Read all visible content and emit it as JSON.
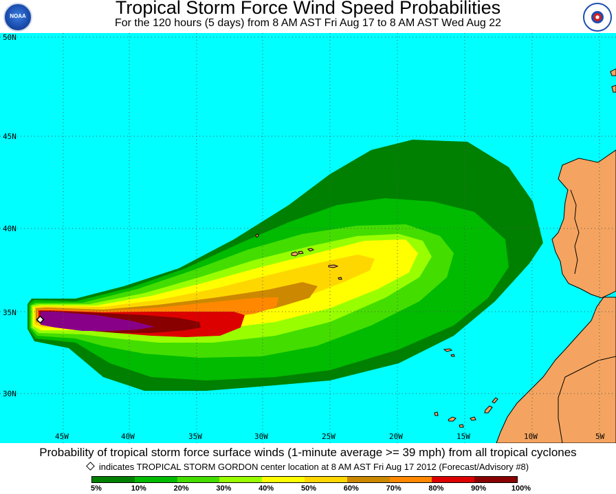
{
  "header": {
    "title": "Tropical Storm Force Wind Speed Probabilities",
    "subtitle": "For the 120 hours (5 days) from 8 AM AST Fri Aug 17 to 8 AM AST Wed Aug 22",
    "left_logo": "NOAA",
    "right_logo": "National Weather Service"
  },
  "map": {
    "ocean_color": "#00ffff",
    "land_color": "#f4a460",
    "lat_labels": [
      "50N",
      "45N",
      "40N",
      "35N",
      "30N"
    ],
    "lon_labels": [
      "45W",
      "40W",
      "35W",
      "30W",
      "25W",
      "20W",
      "15W",
      "10W",
      "5W"
    ],
    "storm_marker": "diamond-icon"
  },
  "footer": {
    "caption": "Probability of tropical storm force surface winds (1-minute average >= 39 mph) from all tropical cyclones",
    "note": "indicates TROPICAL STORM GORDON center location at 8 AM AST Fri Aug 17 2012 (Forecast/Advisory #8)"
  },
  "legend": {
    "colors": [
      "#008000",
      "#00bb00",
      "#44dd00",
      "#99ff00",
      "#ffff00",
      "#ffd700",
      "#cc8800",
      "#ff8800",
      "#dd0000",
      "#880000",
      "#880088"
    ],
    "labels": [
      "5%",
      "10%",
      "20%",
      "30%",
      "40%",
      "50%",
      "60%",
      "70%",
      "80%",
      "90%",
      "100%"
    ]
  }
}
